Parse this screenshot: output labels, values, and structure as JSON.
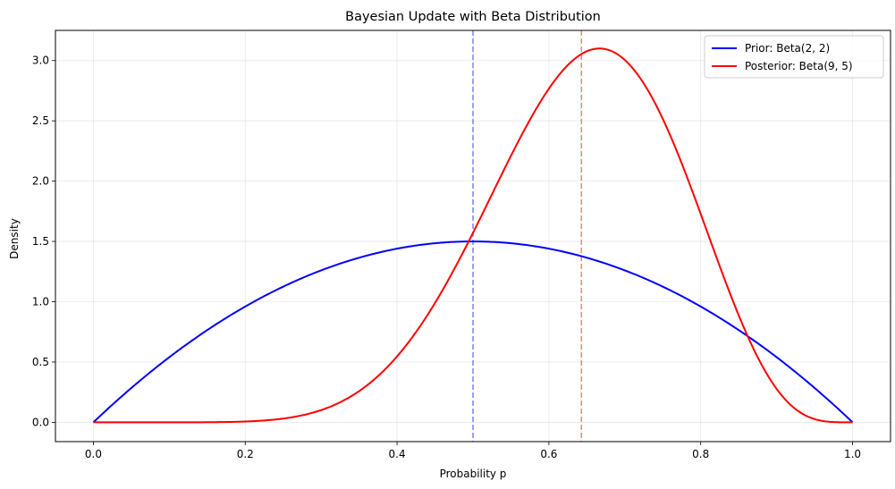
{
  "chart_data": {
    "type": "line",
    "title": "Bayesian Update with Beta Distribution",
    "xlabel": "Probability p",
    "ylabel": "Density",
    "xlim": [
      -0.05,
      1.05
    ],
    "ylim": [
      -0.16,
      3.25
    ],
    "xticks": [
      0.0,
      0.2,
      0.4,
      0.6,
      0.8,
      1.0
    ],
    "xtick_labels": [
      "0.0",
      "0.2",
      "0.4",
      "0.6",
      "0.8",
      "1.0"
    ],
    "yticks": [
      0.0,
      0.5,
      1.0,
      1.5,
      2.0,
      2.5,
      3.0
    ],
    "ytick_labels": [
      "0.0",
      "0.5",
      "1.0",
      "1.5",
      "2.0",
      "2.5",
      "3.0"
    ],
    "grid": true,
    "legend_position": "top-right",
    "series": [
      {
        "name": "Prior: Beta(2, 2)",
        "alpha": 2,
        "beta": 2,
        "color": "#0000ff"
      },
      {
        "name": "Posterior: Beta(9, 5)",
        "alpha": 9,
        "beta": 5,
        "color": "#ff0000"
      }
    ],
    "vlines": [
      {
        "x": 0.5,
        "color": "#0000ff",
        "style": "dashed",
        "opacity": 0.5
      },
      {
        "x": 0.642857,
        "color": "#ff0000",
        "style": "dashed",
        "opacity": 0.5
      }
    ]
  }
}
